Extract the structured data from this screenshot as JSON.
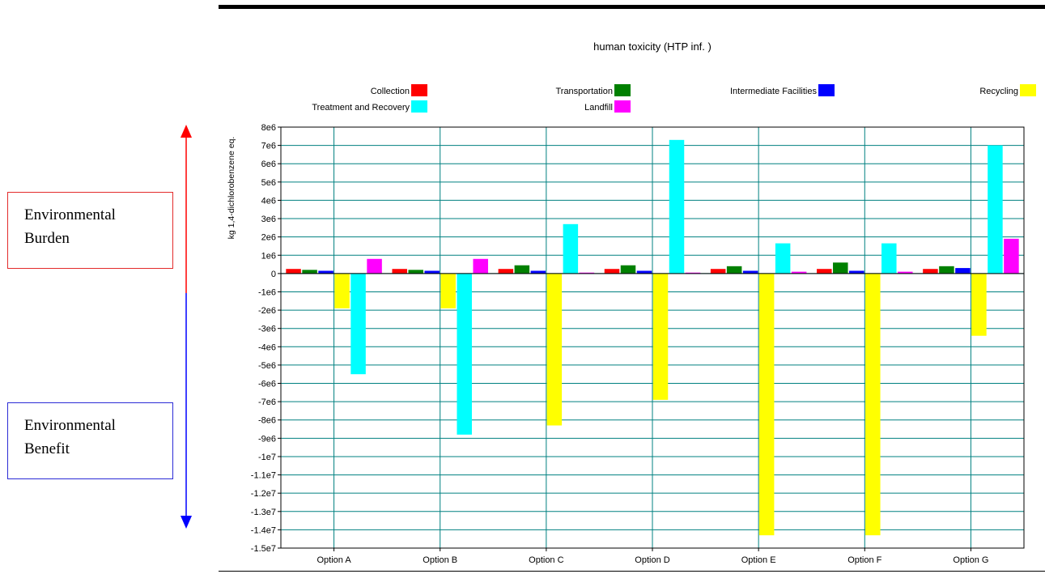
{
  "annotations": {
    "burden": [
      "Environmental",
      "Burden"
    ],
    "benefit": [
      "Environmental",
      "Benefit"
    ]
  },
  "colors": {
    "Collection": "#ff0000",
    "Transportation": "#008000",
    "Intermediate Facilities": "#0000ff",
    "Recycling": "#ffff00",
    "Treatment and Recovery": "#00ffff",
    "Landfill": "#ff00ff",
    "grid": "#008080",
    "arrow_up": "#ff0000",
    "arrow_down": "#0000ff"
  },
  "chart_data": {
    "type": "bar",
    "title": "human toxicity (HTP inf. )",
    "xlabel": "",
    "ylabel": "kg 1,4-dichlorobenzene eq.",
    "ylim": [
      -15000000,
      8000000
    ],
    "grid": true,
    "legend_position": "top",
    "yticks": [
      "8e6",
      "7e6",
      "6e6",
      "5e6",
      "4e6",
      "3e6",
      "2e6",
      "1e6",
      "0",
      "-1e6",
      "-2e6",
      "-3e6",
      "-4e6",
      "-5e6",
      "-6e6",
      "-7e6",
      "-8e6",
      "-9e6",
      "-1e7",
      "-1.1e7",
      "-1.2e7",
      "-1.3e7",
      "-1.4e7",
      "-1.5e7"
    ],
    "categories": [
      "Option A",
      "Option B",
      "Option C",
      "Option D",
      "Option E",
      "Option F",
      "Option G"
    ],
    "series": [
      {
        "name": "Collection",
        "values": [
          250000,
          250000,
          250000,
          250000,
          250000,
          250000,
          250000
        ]
      },
      {
        "name": "Transportation",
        "values": [
          200000,
          200000,
          450000,
          450000,
          400000,
          600000,
          400000
        ]
      },
      {
        "name": "Intermediate Facilities",
        "values": [
          150000,
          150000,
          150000,
          150000,
          150000,
          150000,
          300000
        ]
      },
      {
        "name": "Recycling",
        "values": [
          -1900000,
          -1900000,
          -8300000,
          -6900000,
          -14300000,
          -14300000,
          -3400000
        ]
      },
      {
        "name": "Treatment and Recovery",
        "values": [
          -5500000,
          -8800000,
          2700000,
          7300000,
          1650000,
          1650000,
          7000000
        ]
      },
      {
        "name": "Landfill",
        "values": [
          800000,
          800000,
          50000,
          50000,
          100000,
          100000,
          1900000
        ]
      }
    ]
  }
}
